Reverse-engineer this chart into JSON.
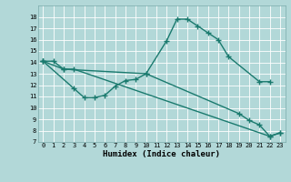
{
  "background_color": "#b2d8d8",
  "grid_color": "#d0e8e8",
  "line_color": "#1a7a6e",
  "line_width": 1.0,
  "marker": "+",
  "marker_size": 4,
  "marker_edge_width": 1.0,
  "xlim": [
    -0.5,
    23.5
  ],
  "ylim": [
    7,
    19
  ],
  "yticks": [
    7,
    8,
    9,
    10,
    11,
    12,
    13,
    14,
    15,
    16,
    17,
    18
  ],
  "xticks": [
    0,
    1,
    2,
    3,
    4,
    5,
    6,
    7,
    8,
    9,
    10,
    11,
    12,
    13,
    14,
    15,
    16,
    17,
    18,
    19,
    20,
    21,
    22,
    23
  ],
  "xlabel": "Humidex (Indice chaleur)",
  "xlabel_fontsize": 6.5,
  "tick_fontsize": 5,
  "series1_x": [
    0,
    1,
    2,
    10,
    12,
    13,
    14,
    15,
    16,
    17,
    18,
    21,
    22
  ],
  "series1_y": [
    14.1,
    14.1,
    13.4,
    13.0,
    15.9,
    17.8,
    17.8,
    17.2,
    16.6,
    16.0,
    14.5,
    12.3,
    12.3
  ],
  "series2_x": [
    0,
    3,
    4,
    5,
    6,
    7,
    8,
    9,
    10,
    19,
    20,
    21,
    22,
    23
  ],
  "series2_y": [
    14.1,
    11.7,
    10.9,
    10.9,
    11.1,
    11.9,
    12.4,
    12.5,
    13.0,
    9.5,
    8.9,
    8.5,
    7.5,
    7.8
  ],
  "series3_x": [
    0,
    2,
    3,
    22,
    23
  ],
  "series3_y": [
    14.1,
    13.4,
    13.4,
    7.5,
    7.8
  ]
}
